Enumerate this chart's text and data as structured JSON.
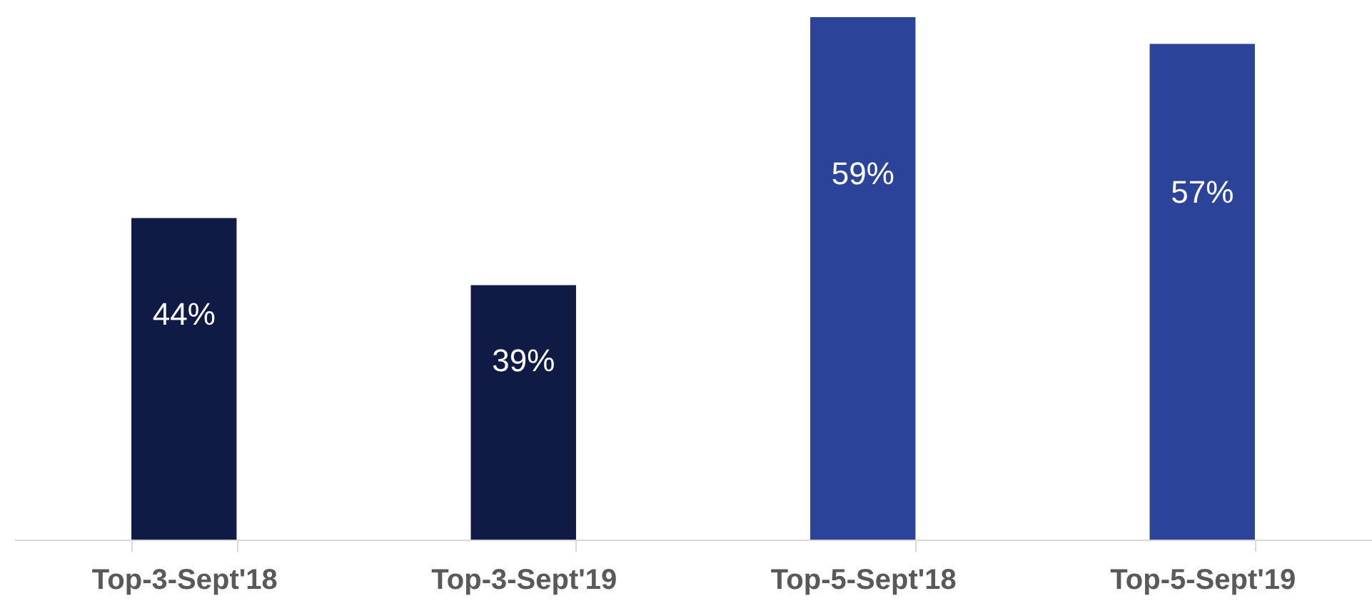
{
  "chart_data": {
    "type": "bar",
    "categories": [
      "Top-3-Sept'18",
      "Top-3-Sept'19",
      "Top-5-Sept'18",
      "Top-5-Sept'19"
    ],
    "values": [
      44,
      39,
      59,
      57
    ],
    "colors": [
      "#0f1a45",
      "#0f1a45",
      "#2b4499",
      "#2b4499"
    ],
    "value_labels": [
      "44%",
      "39%",
      "59%",
      "57%"
    ],
    "ylim": [
      20,
      59
    ],
    "tick_labels": "x"
  }
}
